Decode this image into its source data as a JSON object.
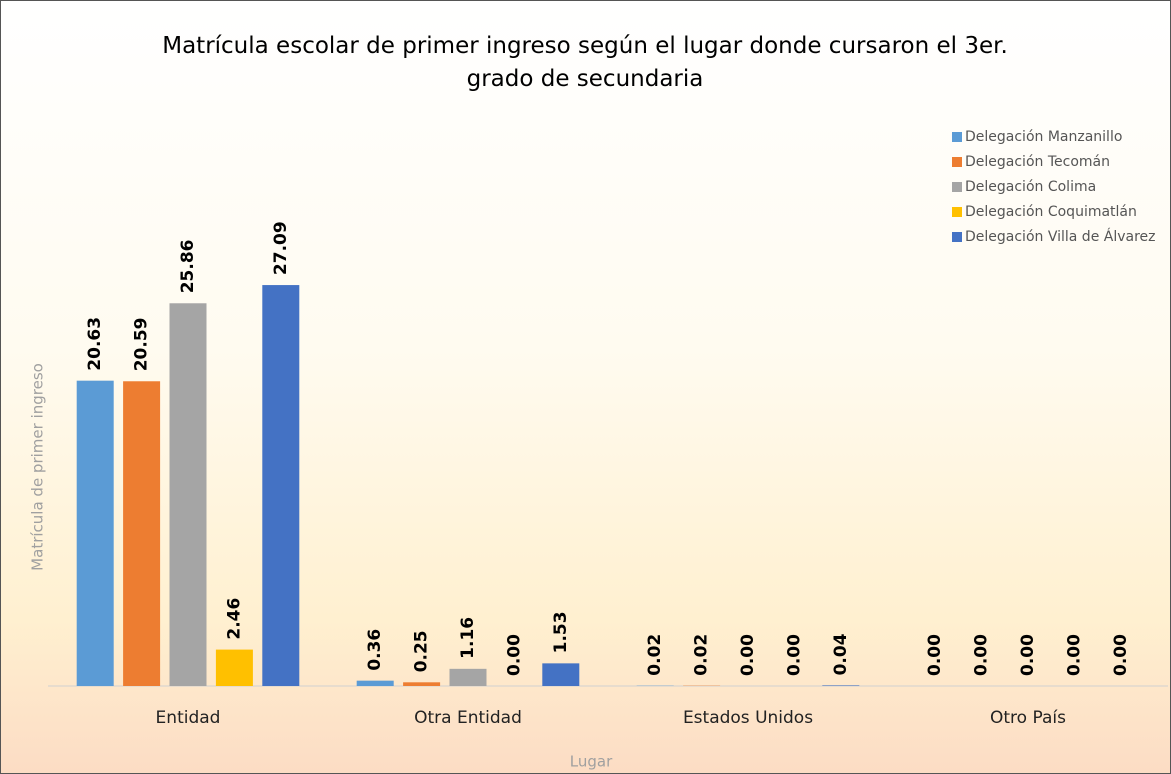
{
  "chart_data": {
    "type": "bar",
    "title": "Matrícula escolar de primer ingreso según el lugar donde cursaron el 3er. grado de secundaria",
    "x_label": "Lugar",
    "y_label": "Matrícula de primer ingreso",
    "categories": [
      "Entidad",
      "Otra Entidad",
      "Estados Unidos",
      "Otro País"
    ],
    "series": [
      {
        "name": "Delegación Manzanillo",
        "color": "#5b9bd5",
        "values": [
          20.63,
          0.36,
          0.02,
          0
        ],
        "value_labels": [
          "20.63",
          "0.36",
          "0.02",
          "0.00"
        ]
      },
      {
        "name": "Delegación Tecomán",
        "color": "#ed7d31",
        "values": [
          20.59,
          0.25,
          0.02,
          0
        ],
        "value_labels": [
          "20.59",
          "0.25",
          "0.02",
          "0.00"
        ]
      },
      {
        "name": "Delegación Colima",
        "color": "#a5a5a5",
        "values": [
          25.86,
          1.16,
          0,
          0
        ],
        "value_labels": [
          "25.86",
          "1.16",
          "0.00",
          "0.00"
        ]
      },
      {
        "name": "Delegación Coquimatlán",
        "color": "#ffc000",
        "values": [
          2.46,
          0,
          0,
          0
        ],
        "value_labels": [
          "2.46",
          "0.00",
          "0.00",
          "0.00"
        ]
      },
      {
        "name": "Delegación Villa de Álvarez",
        "color": "#4472c4",
        "values": [
          27.09,
          1.53,
          0.04,
          0
        ],
        "value_labels": [
          "27.09",
          "1.53",
          "0.04",
          "0.00"
        ]
      }
    ],
    "ylim": [
      0,
      30
    ],
    "legend": "top-right"
  }
}
